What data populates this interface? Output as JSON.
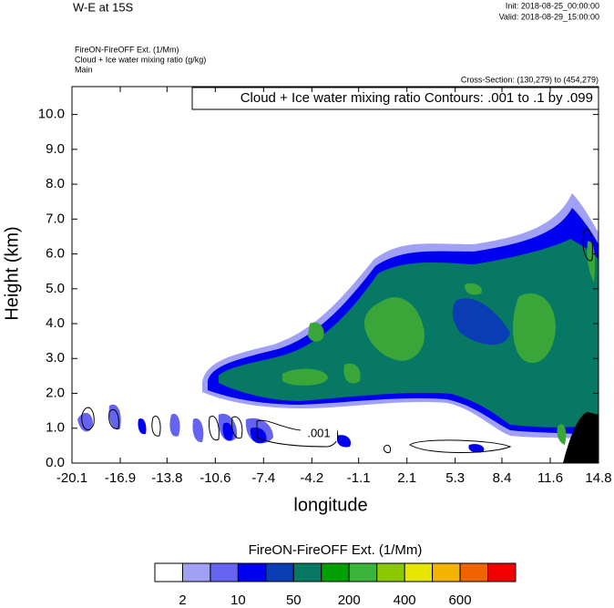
{
  "chart_data": {
    "type": "contour",
    "title": "W-E at 15S",
    "init": "Init: 2018-08-25_00:00:00",
    "valid": "Valid: 2018-08-29_15:00:00",
    "fill_field": "FireON-FireOFF Ext.   (1/Mm)",
    "contour_field": "Cloud + Ice water mixing ratio   (g/kg)",
    "run": "Main",
    "cross_section": "Cross-Section: (130,279) to (454,279)",
    "contour_info": "Cloud + Ice water mixing ratio Contours: .001 to .1 by .099",
    "contour_label": ".001",
    "xlabel": "longitude",
    "ylabel": "Height (km)",
    "xlim": [
      -20.1,
      14.8
    ],
    "xticks": [
      -20.1,
      -16.9,
      -13.8,
      -10.6,
      -7.4,
      -4.2,
      -1.1,
      2.1,
      5.3,
      8.4,
      11.6,
      14.8
    ],
    "ylim": [
      0,
      10.8
    ],
    "yticks": [
      {
        "value": 0,
        "label": "0.0"
      },
      {
        "value": 1,
        "label": "1.0"
      },
      {
        "value": 2,
        "label": "2.0"
      },
      {
        "value": 3,
        "label": "3.0"
      },
      {
        "value": 4,
        "label": "4.0"
      },
      {
        "value": 5,
        "label": "5.0"
      },
      {
        "value": 6,
        "label": "6.0"
      },
      {
        "value": 7,
        "label": "7.0"
      },
      {
        "value": 8,
        "label": "8.0"
      },
      {
        "value": 9,
        "label": "9.0"
      },
      {
        "value": 10,
        "label": "10.0"
      }
    ],
    "colorbar": {
      "title": "FireON-FireOFF Ext.  (1/Mm)",
      "colors": [
        "#ffffff",
        "#a0a0f5",
        "#6464f0",
        "#0000f0",
        "#0a3cb4",
        "#067864",
        "#00a000",
        "#3cb43c",
        "#8cc800",
        "#e6e600",
        "#f5b400",
        "#f06400",
        "#f00000"
      ],
      "levels": [
        2,
        null,
        10,
        null,
        50,
        null,
        200,
        null,
        400,
        null,
        600,
        null
      ]
    }
  }
}
